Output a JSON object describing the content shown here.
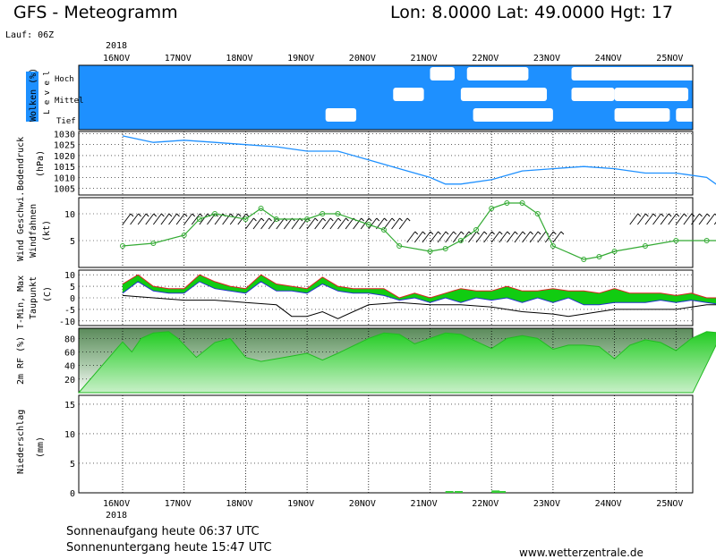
{
  "header": {
    "title": "GFS - Meteogramm",
    "coords": "Lon: 8.0000  Lat: 49.0000  Hgt: 17",
    "run": "Lauf: 06Z"
  },
  "year_top": "2018",
  "year_bottom": "2018",
  "days": [
    "16NOV",
    "17NOV",
    "18NOV",
    "19NOV",
    "20NOV",
    "21NOV",
    "22NOV",
    "23NOV",
    "24NOV",
    "25NOV"
  ],
  "footer": {
    "sunrise": "Sonnenaufgang heute 06:37 UTC",
    "sunset": "Sonnenuntergang heute 15:47 UTC",
    "website": "www.wetterzentrale.de"
  },
  "colors": {
    "cloud_bg": "#1e90ff",
    "pressure_line": "#1e90ff",
    "wind_line": "#33aa33",
    "temp_max": "#dd2222",
    "temp_min": "#2233cc",
    "temp_fill_hi": "#aadd33",
    "temp_fill_lo": "#11cc11",
    "rh_line": "#22bb22",
    "rh_fill": "#33dd33",
    "precip": "#33cc33"
  },
  "chart_data": [
    {
      "type": "area",
      "panel": "clouds",
      "ylabel": "Wolken (%)",
      "level_label": "L e v e l",
      "levels": [
        "Hoch",
        "Mittel",
        "Tief"
      ],
      "note": "white blocks indicate cloud-free gaps"
    },
    {
      "type": "line",
      "panel": "pressure",
      "ylabel": "Bodendruck",
      "unit": "(hPa)",
      "yticks": [
        "1030",
        "1025",
        "1020",
        "1015",
        "1010",
        "1005"
      ],
      "ylim": [
        1002,
        1031
      ],
      "x": [
        0,
        0.5,
        1,
        1.5,
        2,
        2.5,
        3,
        3.5,
        4,
        4.5,
        5,
        5.25,
        5.5,
        6,
        6.5,
        7,
        7.5,
        8,
        8.5,
        9,
        9.5,
        9.75
      ],
      "values": [
        1029,
        1026,
        1027,
        1026,
        1025,
        1024,
        1022,
        1022,
        1018,
        1014,
        1010,
        1007,
        1007,
        1009,
        1013,
        1014,
        1015,
        1014,
        1012,
        1012,
        1010,
        1005
      ]
    },
    {
      "type": "line",
      "panel": "wind",
      "ylabel": "Wind Geschwi.",
      "ylabel2": "Windfahnen",
      "unit": "(kt)",
      "yticks": [
        "10",
        "5"
      ],
      "ylim": [
        0,
        13
      ],
      "x": [
        0,
        0.5,
        1,
        1.25,
        1.5,
        2,
        2.25,
        2.5,
        3,
        3.25,
        3.5,
        4,
        4.25,
        4.5,
        5,
        5.25,
        5.5,
        5.75,
        6,
        6.25,
        6.5,
        6.75,
        7,
        7.5,
        7.75,
        8,
        8.5,
        9,
        9.5,
        9.75
      ],
      "values": [
        4,
        4.5,
        6,
        9,
        10,
        9,
        11,
        9,
        9,
        10,
        10,
        8,
        7,
        4,
        3,
        3.5,
        5,
        7,
        11,
        12,
        12,
        10,
        4,
        1.5,
        2,
        3,
        4,
        5,
        5,
        5
      ]
    },
    {
      "type": "area",
      "panel": "temperature",
      "ylabel": "T-Min, Max",
      "ylabel2": "Taupunkt",
      "unit": "(C)",
      "yticks": [
        "10",
        "5",
        "0",
        "-5",
        "-10"
      ],
      "ylim": [
        -12,
        12
      ],
      "series": [
        {
          "name": "Max",
          "x": [
            0,
            0.25,
            0.5,
            0.75,
            1,
            1.25,
            1.5,
            1.75,
            2,
            2.25,
            2.5,
            2.75,
            3,
            3.25,
            3.5,
            3.75,
            4,
            4.25,
            4.5,
            4.75,
            5,
            5.25,
            5.5,
            5.75,
            6,
            6.25,
            6.5,
            6.75,
            7,
            7.25,
            7.5,
            7.75,
            8,
            8.25,
            8.5,
            8.75,
            9,
            9.25,
            9.5,
            9.75
          ],
          "values": [
            6,
            10,
            5,
            4,
            4,
            10,
            7,
            5,
            4,
            10,
            6,
            5,
            4,
            9,
            5,
            4,
            4,
            4,
            0,
            2,
            0,
            2,
            4,
            3,
            3,
            5,
            3,
            3,
            4,
            3,
            3,
            2,
            4,
            2,
            2,
            2,
            1,
            2,
            0,
            0
          ]
        },
        {
          "name": "Min",
          "x": [
            0,
            0.25,
            0.5,
            0.75,
            1,
            1.25,
            1.5,
            1.75,
            2,
            2.25,
            2.5,
            2.75,
            3,
            3.25,
            3.5,
            3.75,
            4,
            4.25,
            4.5,
            4.75,
            5,
            5.25,
            5.5,
            5.75,
            6,
            6.25,
            6.5,
            6.75,
            7,
            7.25,
            7.5,
            7.75,
            8,
            8.25,
            8.5,
            8.75,
            9,
            9.25,
            9.5,
            9.75
          ],
          "values": [
            2,
            7,
            3,
            2,
            2,
            7,
            4,
            3,
            2,
            7,
            3,
            3,
            2,
            6,
            3,
            2,
            2,
            1,
            -1,
            0,
            -2,
            0,
            -2,
            0,
            -1,
            0,
            -2,
            0,
            -2,
            0,
            -3,
            -3,
            -2,
            -2,
            -2,
            -1,
            -2,
            -1,
            -2,
            -3
          ]
        },
        {
          "name": "Taupunkt",
          "x": [
            0,
            0.5,
            1,
            1.5,
            2,
            2.5,
            2.75,
            3,
            3.25,
            3.5,
            4,
            4.5,
            5,
            5.5,
            6,
            6.5,
            7,
            7.25,
            7.5,
            7.75,
            8,
            8.5,
            9,
            9.5,
            9.75
          ],
          "values": [
            1,
            0,
            -1,
            -1,
            -2,
            -3,
            -8,
            -8,
            -6,
            -9,
            -3,
            -2,
            -3,
            -3,
            -4,
            -6,
            -7,
            -8,
            -7,
            -6,
            -5,
            -5,
            -5,
            -3,
            -3
          ]
        }
      ]
    },
    {
      "type": "area",
      "panel": "humidity",
      "ylabel": "2m RF (%)",
      "yticks": [
        "80",
        "60",
        "40",
        "20"
      ],
      "ylim": [
        0,
        95
      ],
      "x": [
        0,
        0.15,
        0.3,
        0.5,
        0.75,
        0.9,
        1.2,
        1.5,
        1.75,
        2,
        2.25,
        2.5,
        2.75,
        3,
        3.25,
        3.5,
        4,
        4.25,
        4.5,
        4.75,
        5,
        5.25,
        5.5,
        6,
        6.25,
        6.5,
        6.75,
        7,
        7.25,
        7.5,
        7.75,
        8,
        8.25,
        8.5,
        8.75,
        9,
        9.25,
        9.5,
        9.75
      ],
      "values": [
        75,
        60,
        80,
        88,
        90,
        80,
        52,
        74,
        80,
        52,
        46,
        50,
        54,
        58,
        48,
        58,
        80,
        88,
        86,
        72,
        80,
        88,
        86,
        65,
        80,
        84,
        80,
        64,
        70,
        70,
        68,
        50,
        70,
        78,
        74,
        62,
        80,
        90,
        88
      ]
    },
    {
      "type": "bar",
      "panel": "precipitation",
      "ylabel": "Niederschlag",
      "unit": "(mm)",
      "yticks": [
        "15",
        "10",
        "5",
        "0"
      ],
      "ylim": [
        0,
        16.5
      ],
      "x": [
        5.25,
        5.4,
        6,
        6.1
      ],
      "values": [
        0.3,
        0.3,
        0.4,
        0.3
      ]
    }
  ]
}
